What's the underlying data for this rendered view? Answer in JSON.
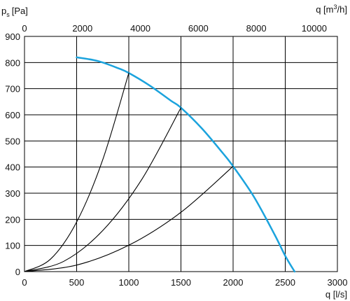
{
  "chart_data": {
    "type": "line",
    "bottom_axis": {
      "label": "q [l/s]",
      "range": [
        0,
        3000
      ],
      "ticks": [
        0,
        500,
        1000,
        1500,
        2000,
        2500,
        3000
      ]
    },
    "top_axis": {
      "label_prefix": "q [m",
      "label_sup": "3",
      "label_suffix": "/h]",
      "ticks": [
        0,
        2000,
        4000,
        6000,
        8000,
        10000
      ]
    },
    "left_axis": {
      "label_main": "p",
      "label_sub": "s",
      "label_unit": "[Pa]",
      "range": [
        0,
        900
      ],
      "ticks": [
        0,
        100,
        200,
        300,
        400,
        500,
        600,
        700,
        800,
        900
      ]
    },
    "grid": {
      "vertical_at": [
        500,
        1000,
        1500,
        2000,
        2500
      ],
      "horizontal_every": 100
    },
    "series": [
      {
        "color": "#1ba3dd",
        "x": [
          500,
          700,
          900,
          1000,
          1200,
          1400,
          1500,
          1700,
          1900,
          2000,
          2200,
          2400,
          2500,
          2590
        ],
        "y": [
          820,
          806,
          778,
          760,
          712,
          655,
          627,
          548,
          454,
          403,
          286,
          140,
          60,
          0
        ]
      },
      {
        "color": "#000000",
        "x": [
          0,
          250,
          500,
          750,
          1000
        ],
        "y": [
          0,
          48,
          190,
          428,
          760
        ]
      },
      {
        "color": "#000000",
        "x": [
          0,
          375,
          750,
          1125,
          1500
        ],
        "y": [
          0,
          39,
          157,
          353,
          627
        ]
      },
      {
        "color": "#000000",
        "x": [
          0,
          500,
          1000,
          1500,
          2000
        ],
        "y": [
          0,
          25,
          101,
          227,
          403
        ]
      }
    ]
  }
}
